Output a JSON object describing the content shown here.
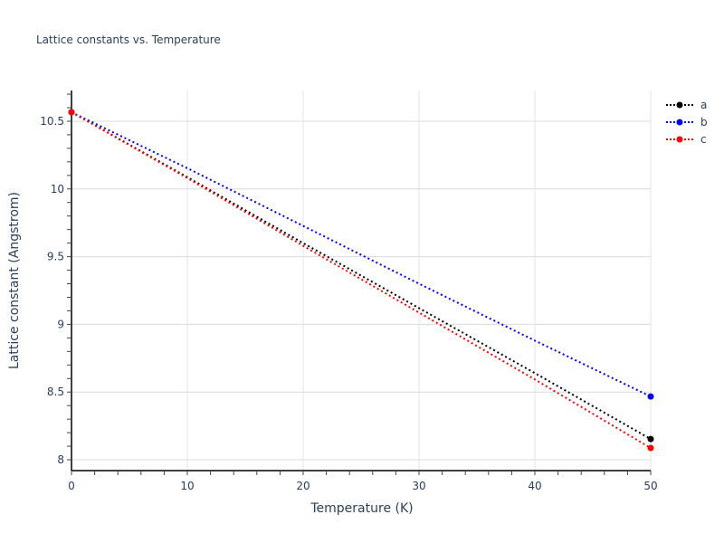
{
  "chart": {
    "title": "Lattice constants vs. Temperature",
    "xlabel": "Temperature (K)",
    "ylabel": "Lattice constant (Angstrom)"
  },
  "legend": {
    "items": [
      {
        "label": "a",
        "color": "#000000"
      },
      {
        "label": "b",
        "color": "#0000ff"
      },
      {
        "label": "c",
        "color": "#ff0000"
      }
    ]
  },
  "chart_data": {
    "type": "line",
    "title": "Lattice constants vs. Temperature",
    "xlabel": "Temperature (K)",
    "ylabel": "Lattice constant (Angstrom)",
    "x": [
      0,
      10,
      20,
      30,
      40,
      50
    ],
    "series": [
      {
        "name": "a",
        "color": "#000000",
        "values": [
          10.567,
          10.087,
          9.6,
          9.12,
          8.64,
          8.153
        ]
      },
      {
        "name": "b",
        "color": "#0000ff",
        "values": [
          10.567,
          10.153,
          9.727,
          9.3,
          8.88,
          8.467
        ]
      },
      {
        "name": "c",
        "color": "#ff0000",
        "values": [
          10.567,
          10.08,
          9.58,
          9.087,
          8.593,
          8.087
        ]
      }
    ],
    "markers_at": [
      0,
      50
    ],
    "line_style": "dotted",
    "xlim": [
      0,
      50
    ],
    "ylim": [
      7.92,
      10.727
    ],
    "xticks": [
      0,
      10,
      20,
      30,
      40,
      50
    ],
    "yticks": [
      8,
      8.5,
      9,
      9.5,
      10,
      10.5
    ],
    "ytick_labels": [
      "8",
      "8.5",
      "9",
      "9.5",
      "10",
      "10.5"
    ],
    "x_minor_step": 2,
    "y_minor_step": 0.1,
    "grid": true,
    "legend_position": "top-right"
  }
}
